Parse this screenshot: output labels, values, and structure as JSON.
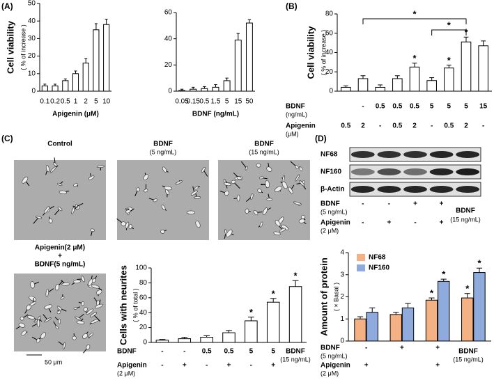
{
  "panel_labels": [
    "(A)",
    "(B)",
    "(C)",
    "(D)"
  ],
  "chart_data": [
    {
      "type": "bar",
      "ylabel": "Cell viability",
      "ylabel_sub": "( % of increase )",
      "xlabel": "Apigenin (μM)",
      "categories": [
        "0.1",
        "0.2",
        "0.5",
        "1",
        "2",
        "5",
        "10"
      ],
      "values": [
        3,
        3,
        6,
        10,
        16,
        35,
        38
      ],
      "errors": [
        1,
        1,
        1,
        1.5,
        2.5,
        3.5,
        3
      ],
      "color": "#ffffff",
      "ylim": [
        0,
        50
      ],
      "yticks": [
        0,
        10,
        20,
        30,
        40,
        50
      ]
    },
    {
      "type": "bar",
      "xlabel": "BDNF (ng/mL)",
      "categories": [
        "0.05",
        "0.15",
        "0.5",
        "1.5",
        "5",
        "15",
        "50"
      ],
      "values": [
        0.5,
        1.5,
        2,
        3,
        8,
        39,
        52
      ],
      "errors": [
        1,
        1.5,
        1.5,
        2,
        2,
        5,
        2.5
      ],
      "color": "#ffffff",
      "ylim": [
        0,
        60
      ],
      "yticks": [
        0,
        20,
        40,
        60
      ]
    },
    {
      "type": "bar",
      "ylabel": "Cell viability",
      "ylabel_sub": "( % of increase )",
      "rows": [
        {
          "label": "BDNF",
          "unit": "(ng/mL)",
          "values": [
            null,
            "-",
            "0.5",
            "0.5",
            "0.5",
            "5",
            "5",
            "5",
            "15"
          ]
        },
        {
          "label": "Apigenin",
          "unit": "(μM)",
          "values": [
            "0.5",
            "2",
            "-",
            "0.5",
            "2",
            "-",
            "0.5",
            "2",
            "-"
          ]
        }
      ],
      "values": [
        4,
        13,
        4,
        13,
        25,
        11,
        24,
        51,
        47
      ],
      "errors": [
        1.5,
        3,
        2.5,
        3,
        4,
        3,
        3,
        5,
        5
      ],
      "stars": [
        null,
        null,
        null,
        null,
        "*",
        null,
        "*",
        "*",
        null
      ],
      "brackets": [
        "*",
        "*"
      ],
      "color": "#ffffff",
      "ylim": [
        0,
        80
      ],
      "yticks": [
        0,
        20,
        40,
        60,
        80
      ]
    },
    {
      "type": "bar",
      "ylabel": "Cells with neurites",
      "ylabel_sub": "( % of total )",
      "rows": [
        {
          "label": "BDNF",
          "values": [
            "-",
            "-",
            "0.5",
            "0.5",
            "5",
            "5",
            null
          ]
        },
        {
          "label": "Apigenin",
          "unit": "(2 μM)",
          "values": [
            "-",
            "+",
            "-",
            "+",
            "-",
            "+",
            null
          ]
        }
      ],
      "extra": {
        "label": "BDNF",
        "unit": "(15 ng/mL)"
      },
      "values": [
        3,
        5,
        7,
        13,
        29,
        54,
        75
      ],
      "errors": [
        1,
        2,
        2,
        3,
        5,
        5,
        8
      ],
      "stars": [
        null,
        null,
        null,
        null,
        "*",
        "*",
        "*"
      ],
      "color": "#ffffff",
      "ylim": [
        0,
        100
      ],
      "yticks": [
        0,
        20,
        40,
        60,
        80,
        100
      ]
    },
    {
      "type": "bar",
      "ylabel": "Amount of protein",
      "ylabel_sub": "( × Basal )",
      "rows": [
        {
          "label": "BDNF",
          "unit": "(5 ng/mL)",
          "values": [
            "-",
            "+",
            "+",
            null
          ]
        },
        {
          "label": "Apigenin",
          "unit": "(2 μM)",
          "values": [
            "+",
            null,
            "+",
            null
          ]
        }
      ],
      "extra": {
        "label": "BDNF",
        "unit": "(15 ng/mL)"
      },
      "series": [
        {
          "name": "NF68",
          "color": "#f4b183",
          "values": [
            1.0,
            1.2,
            1.85,
            1.95
          ],
          "errors": [
            0.1,
            0.1,
            0.1,
            0.2
          ],
          "stars": [
            null,
            null,
            "*",
            "*"
          ]
        },
        {
          "name": "NF160",
          "color": "#8faadc",
          "values": [
            1.3,
            1.5,
            2.7,
            3.1
          ],
          "errors": [
            0.2,
            0.2,
            0.1,
            0.2
          ],
          "stars": [
            null,
            null,
            "*",
            "*"
          ]
        }
      ],
      "legend": "upper left",
      "ylim": [
        0,
        4
      ],
      "yticks": [
        0,
        1,
        2,
        3,
        4
      ]
    }
  ],
  "micrographs": {
    "titles": [
      [
        "Control"
      ],
      [
        "BDNF",
        "(5 ng/mL)"
      ],
      [
        "BDNF",
        "(15 ng/mL)"
      ],
      [
        "Apigenin(2 μM)",
        "+",
        "BDNF(5 ng/mL)"
      ]
    ],
    "scale_bar": "50 μm"
  },
  "blot": {
    "bands": [
      "NF68",
      "NF160",
      "β-Actin"
    ],
    "rows": [
      {
        "label": "BDNF",
        "unit": "(5 ng/mL)",
        "values": [
          "-",
          "-",
          "+",
          "+"
        ]
      },
      {
        "label": "Apigenin",
        "unit": "(2 μM)",
        "values": [
          "-",
          "+",
          "-",
          "+"
        ]
      }
    ],
    "extra": {
      "label": "BDNF",
      "unit": "(15 ng/mL)"
    }
  }
}
